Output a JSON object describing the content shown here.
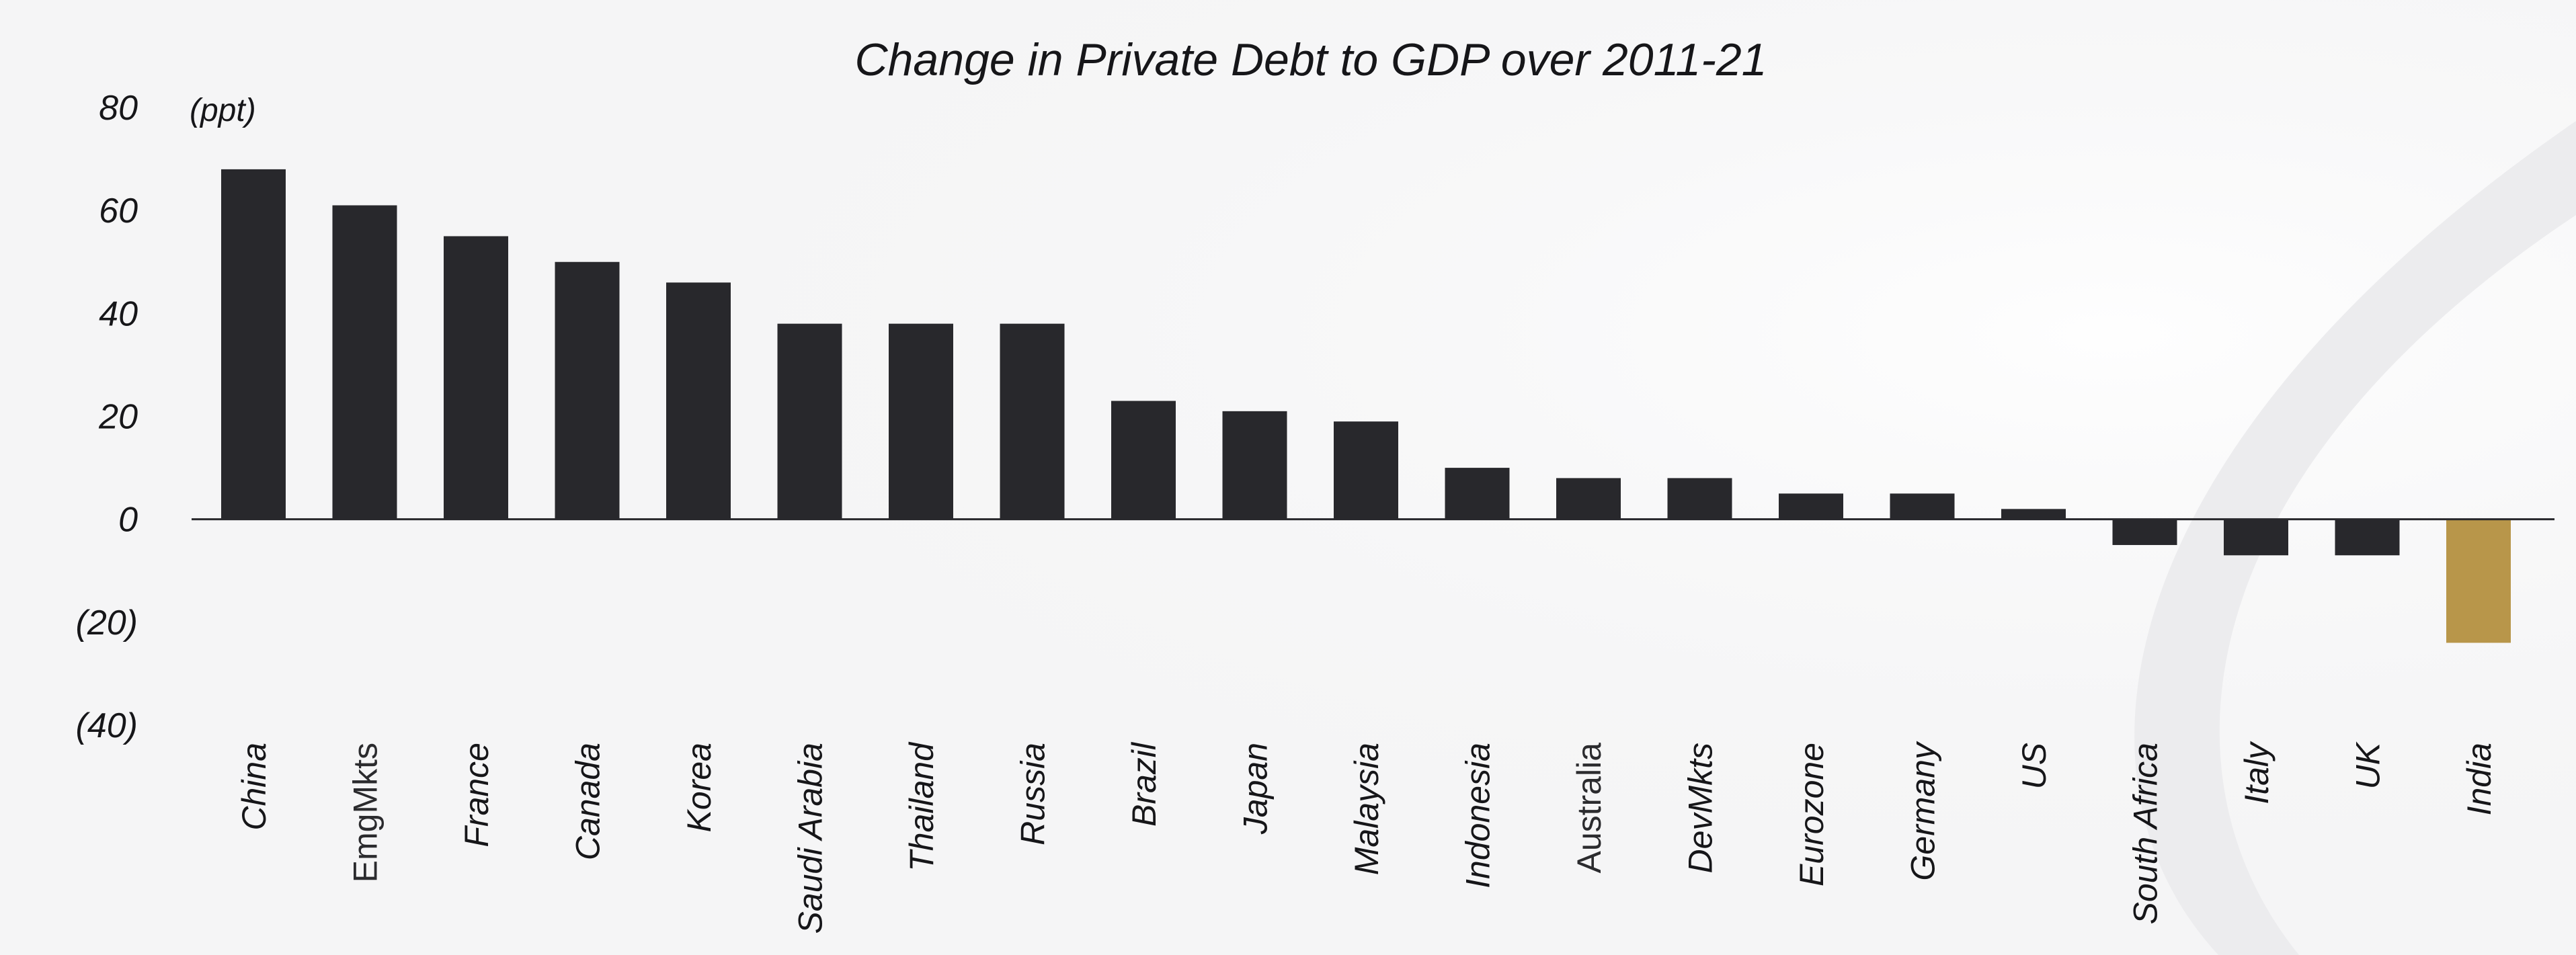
{
  "chart_data": {
    "type": "bar",
    "title": "Change in Private Debt to GDP over 2011-21",
    "unit_label": "(ppt)",
    "xlabel": "",
    "ylabel": "",
    "ylim": [
      -40,
      80
    ],
    "y_ticks": [
      {
        "value": 80,
        "label": "80"
      },
      {
        "value": 60,
        "label": "60"
      },
      {
        "value": 40,
        "label": "40"
      },
      {
        "value": 20,
        "label": "20"
      },
      {
        "value": 0,
        "label": "0"
      },
      {
        "value": -20,
        "label": "(20)"
      },
      {
        "value": -40,
        "label": "(40)"
      }
    ],
    "categories": [
      "China",
      "EmgMkts",
      "France",
      "Canada",
      "Korea",
      "Saudi Arabia",
      "Thailand",
      "Russia",
      "Brazil",
      "Japan",
      "Malaysia",
      "Indonesia",
      "Australia",
      "DevMkts",
      "Eurozone",
      "Germany",
      "US",
      "South Africa",
      "Italy",
      "UK",
      "India"
    ],
    "values": [
      68,
      61,
      55,
      50,
      46,
      38,
      38,
      38,
      23,
      21,
      19,
      10,
      8,
      8,
      5,
      5,
      2,
      -5,
      -7,
      -7,
      -24
    ],
    "colors": {
      "default": "#28282c",
      "highlight": "#b8964a",
      "highlight_category": "India",
      "axis": "#28282c",
      "text": "#161619"
    },
    "plain_label_categories": [
      "EmgMkts",
      "Australia"
    ],
    "grid": false,
    "legend": "none"
  }
}
